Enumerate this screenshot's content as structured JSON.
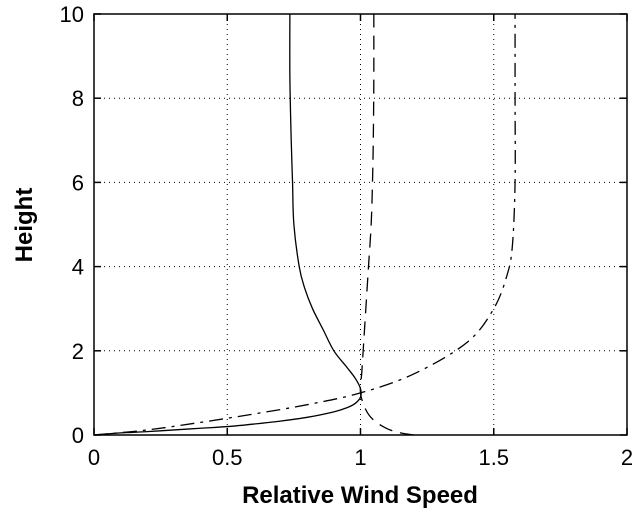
{
  "chart_data": {
    "type": "line",
    "title": "",
    "xlabel": "Relative Wind Speed",
    "ylabel": "Height",
    "xlim": [
      0,
      2
    ],
    "ylim": [
      0,
      10
    ],
    "xticks": [
      "0",
      "0.5",
      "1",
      "1.5",
      "2"
    ],
    "yticks": [
      "0",
      "2",
      "4",
      "6",
      "8",
      "10"
    ],
    "grid": true,
    "series": [
      {
        "style": "solid",
        "x": [
          0.0,
          0.1,
          0.2,
          0.3,
          0.4,
          0.5,
          0.6,
          0.7,
          0.8,
          0.9,
          0.95,
          0.98,
          1.0,
          1.0,
          0.98,
          0.95,
          0.9,
          0.86,
          0.82,
          0.79,
          0.77,
          0.75,
          0.745,
          0.74,
          0.735,
          0.735
        ],
        "y": [
          0.0,
          0.05,
          0.08,
          0.12,
          0.16,
          0.2,
          0.26,
          0.33,
          0.42,
          0.55,
          0.65,
          0.75,
          0.9,
          1.1,
          1.35,
          1.6,
          2.0,
          2.5,
          3.0,
          3.5,
          4.0,
          5.0,
          6.0,
          7.0,
          8.5,
          10.0
        ]
      },
      {
        "style": "dashed",
        "x": [
          1.2,
          1.15,
          1.1,
          1.05,
          1.02,
          1.0,
          1.005,
          1.01,
          1.02,
          1.03,
          1.04,
          1.045,
          1.048,
          1.05,
          1.05
        ],
        "y": [
          0.0,
          0.05,
          0.15,
          0.35,
          0.6,
          1.0,
          1.5,
          2.0,
          3.0,
          4.0,
          5.0,
          6.0,
          7.0,
          8.5,
          10.0
        ]
      },
      {
        "style": "dash-dot",
        "x": [
          0.0,
          0.2,
          0.4,
          0.6,
          0.8,
          1.0,
          1.2,
          1.4,
          1.5,
          1.55,
          1.57,
          1.58,
          1.58,
          1.58
        ],
        "y": [
          0.0,
          0.12,
          0.3,
          0.5,
          0.72,
          1.0,
          1.45,
          2.2,
          3.0,
          3.8,
          4.5,
          6.0,
          8.0,
          10.0
        ]
      }
    ]
  }
}
